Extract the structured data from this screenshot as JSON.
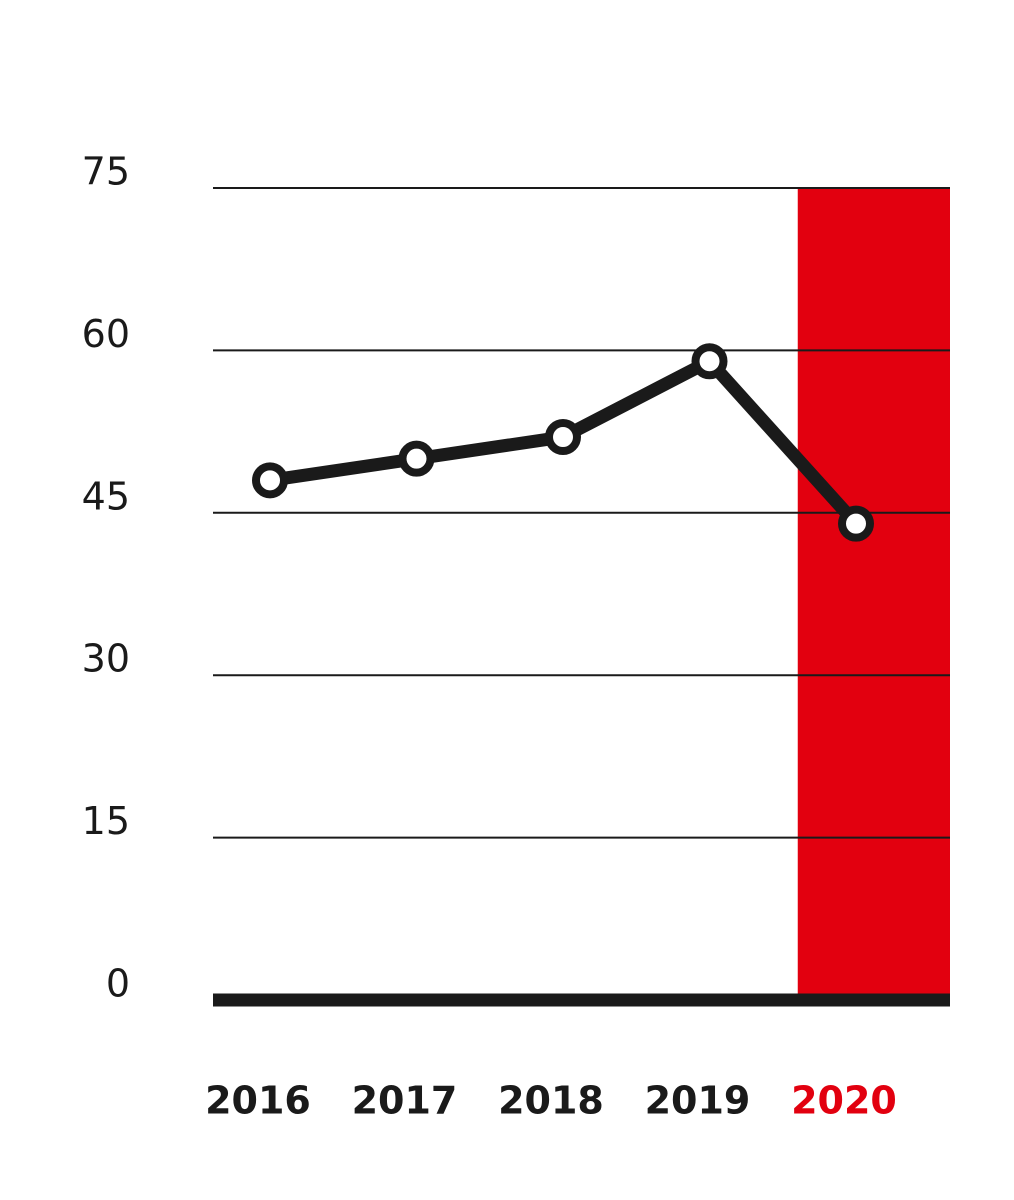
{
  "chart_data": {
    "type": "line",
    "categories": [
      "2016",
      "2017",
      "2018",
      "2019",
      "2020"
    ],
    "series": [
      {
        "color": "#1a1a1a",
        "values": [
          48,
          50,
          52,
          59,
          44
        ]
      }
    ],
    "ylim": [
      0,
      75
    ],
    "yticks": [
      0,
      15,
      30,
      45,
      60,
      75
    ],
    "grid": true,
    "highlight_category": "2020",
    "highlight_color": "#e2000f"
  }
}
